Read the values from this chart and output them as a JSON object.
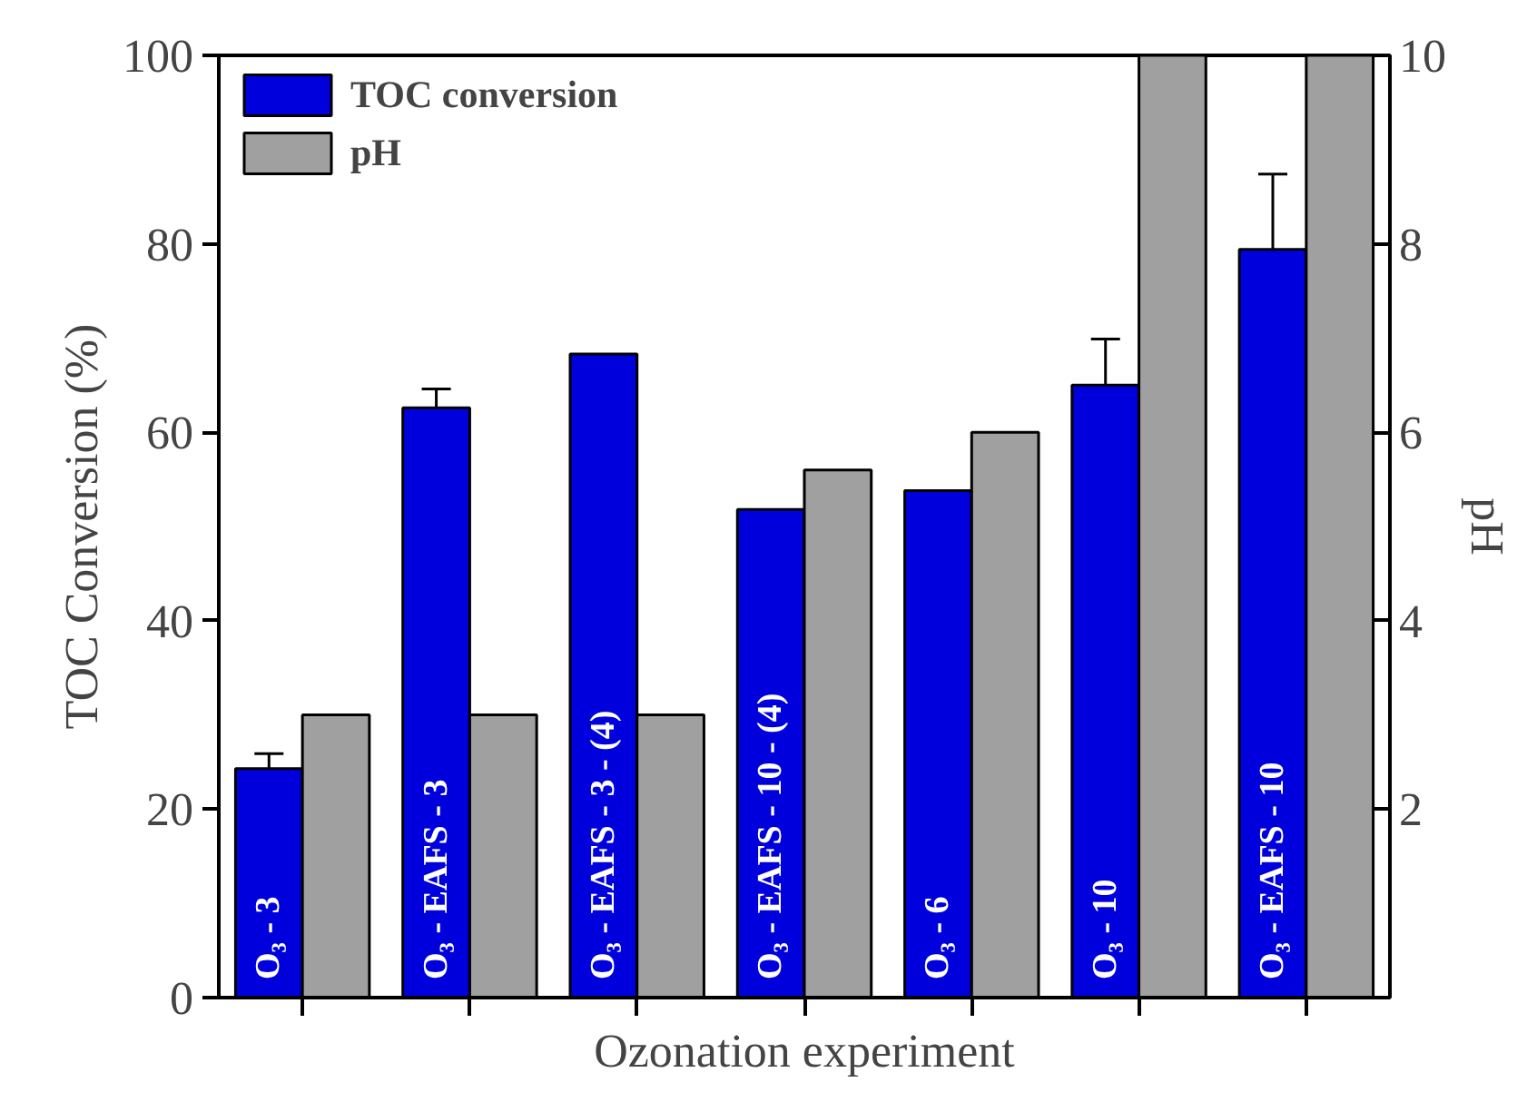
{
  "chart_data": {
    "type": "bar",
    "xlabel": "Ozonation experiment",
    "ylabel": "TOC Conversion (%)",
    "y2label": "pH",
    "categories": [
      "O₃ - 3",
      "O₃ - EAFS - 3",
      "O₃ - EAFS - 3 - (4)",
      "O₃ - EAFS - 10 - (4)",
      "O₃ - 6",
      "O₃ - 10",
      "O₃ - EAFS - 10"
    ],
    "series": [
      {
        "name": "TOC conversion",
        "color": "#0000dd",
        "values": [
          24.3,
          62.6,
          68.3,
          51.8,
          53.8,
          65.0,
          79.4
        ],
        "errors": [
          1.6,
          2.0,
          null,
          null,
          null,
          4.9,
          8.0
        ]
      },
      {
        "name": "pH",
        "color": "#a0a0a0",
        "axis": "y2",
        "values": [
          3,
          3,
          3,
          5.6,
          6,
          10,
          10
        ]
      }
    ],
    "ylim": [
      0,
      100
    ],
    "yticks": [
      0,
      20,
      40,
      60,
      80,
      100
    ],
    "y2lim": [
      0,
      10
    ],
    "y2ticks": [
      2,
      4,
      6,
      8,
      10
    ],
    "legend": "top left"
  }
}
